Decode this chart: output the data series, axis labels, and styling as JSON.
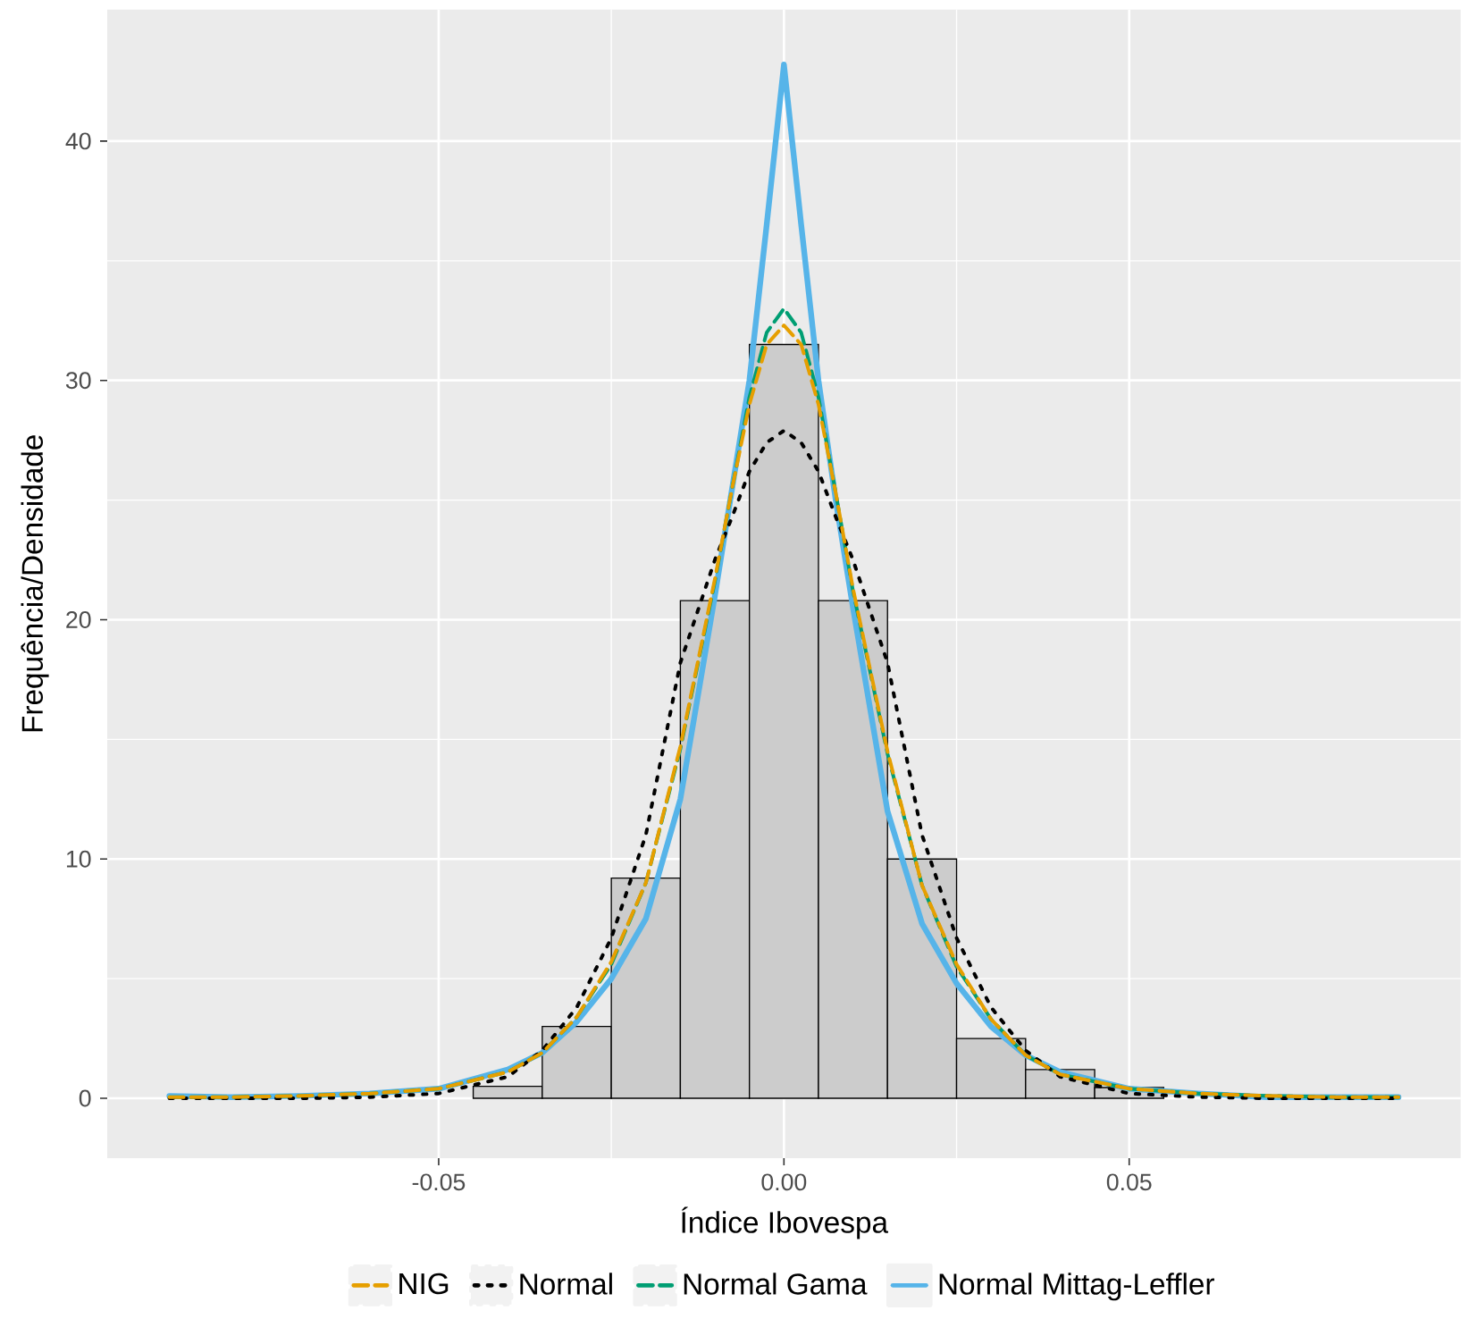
{
  "chart_data": {
    "type": "histogram",
    "xlabel": "Índice Ibovespa",
    "ylabel": "Frequência/Densidade",
    "bins": [
      -0.045,
      -0.035,
      -0.025,
      -0.015,
      -0.005,
      0.005,
      0.015,
      0.025,
      0.035,
      0.045,
      0.055
    ],
    "values": [
      0.5,
      3.0,
      9.2,
      20.8,
      31.5,
      20.8,
      10.0,
      2.5,
      1.2,
      0.45
    ],
    "color": "#cccccc",
    "series": [
      {
        "name": "NIG",
        "type": "line",
        "color": "#e69f00",
        "line_style": "dashed",
        "x": [
          -0.089,
          -0.08,
          -0.07,
          -0.06,
          -0.05,
          -0.04,
          -0.035,
          -0.03,
          -0.025,
          -0.02,
          -0.015,
          -0.01,
          -0.0075,
          -0.005,
          -0.0025,
          0,
          0.0025,
          0.005,
          0.0075,
          0.01,
          0.015,
          0.02,
          0.025,
          0.03,
          0.035,
          0.04,
          0.05,
          0.06,
          0.07,
          0.08,
          0.089
        ],
        "values": [
          0.05,
          0.05,
          0.1,
          0.2,
          0.4,
          1.1,
          1.9,
          3.4,
          5.7,
          9.0,
          14.7,
          21.7,
          25.5,
          29,
          31.5,
          32.3,
          31.5,
          29,
          25.3,
          21.3,
          14.5,
          8.9,
          5.6,
          3.3,
          1.8,
          1.0,
          0.4,
          0.2,
          0.1,
          0.05,
          0.05
        ]
      },
      {
        "name": "Normal",
        "type": "line",
        "color": "#000000",
        "line_style": "dotted",
        "x": [
          -0.089,
          -0.08,
          -0.07,
          -0.06,
          -0.05,
          -0.04,
          -0.035,
          -0.03,
          -0.025,
          -0.02,
          -0.015,
          -0.01,
          -0.0075,
          -0.005,
          -0.0025,
          0,
          0.0025,
          0.005,
          0.0075,
          0.01,
          0.015,
          0.02,
          0.025,
          0.03,
          0.035,
          0.04,
          0.05,
          0.06,
          0.07,
          0.08,
          0.089
        ],
        "values": [
          0,
          0,
          0,
          0.05,
          0.2,
          0.9,
          2.0,
          3.8,
          6.7,
          11.0,
          18.2,
          22.5,
          24.3,
          26.2,
          27.4,
          27.9,
          27.4,
          26.2,
          24.3,
          22.5,
          18.2,
          11.0,
          6.7,
          3.8,
          2.0,
          0.9,
          0.2,
          0.05,
          0,
          0,
          0
        ]
      },
      {
        "name": "Normal Gama",
        "type": "line",
        "color": "#009e73",
        "line_style": "dashed",
        "x": [
          -0.089,
          -0.08,
          -0.07,
          -0.06,
          -0.05,
          -0.04,
          -0.035,
          -0.03,
          -0.025,
          -0.02,
          -0.015,
          -0.01,
          -0.0075,
          -0.005,
          -0.0025,
          0,
          0.0025,
          0.005,
          0.0075,
          0.01,
          0.015,
          0.02,
          0.025,
          0.03,
          0.035,
          0.04,
          0.05,
          0.06,
          0.07,
          0.08,
          0.089
        ],
        "values": [
          0.05,
          0.05,
          0.1,
          0.2,
          0.4,
          1.1,
          1.9,
          3.4,
          5.6,
          9.0,
          14.6,
          21.6,
          25.5,
          29.3,
          32.0,
          33.0,
          32.0,
          29.3,
          25.3,
          21.2,
          14.4,
          8.9,
          5.5,
          3.3,
          1.8,
          1.0,
          0.4,
          0.2,
          0.1,
          0.05,
          0.05
        ]
      },
      {
        "name": "Normal Mittag-Leffler",
        "type": "line",
        "color": "#56b4e9",
        "line_style": "solid",
        "x": [
          -0.089,
          -0.08,
          -0.07,
          -0.06,
          -0.05,
          -0.04,
          -0.035,
          -0.03,
          -0.025,
          -0.02,
          -0.015,
          -0.01,
          -0.0075,
          -0.005,
          -0.0025,
          0,
          0.0025,
          0.005,
          0.0075,
          0.01,
          0.015,
          0.02,
          0.025,
          0.03,
          0.035,
          0.04,
          0.05,
          0.06,
          0.07,
          0.08,
          0.089
        ],
        "values": [
          0.1,
          0.05,
          0.1,
          0.2,
          0.4,
          1.2,
          1.9,
          3.2,
          5.0,
          7.5,
          12.5,
          21,
          25.5,
          30,
          36.5,
          43.2,
          36.5,
          30,
          25,
          20.5,
          12,
          7.3,
          4.8,
          3.0,
          1.8,
          1.1,
          0.4,
          0.2,
          0.05,
          0.05,
          0.05
        ]
      }
    ],
    "xlim": [
      -0.098,
      0.098
    ],
    "ylim": [
      -2.5,
      45.5
    ],
    "xticks": [
      {
        "value": -0.05,
        "label": "-0.05"
      },
      {
        "value": 0,
        "label": "0.00"
      },
      {
        "value": 0.05,
        "label": "0.05"
      }
    ],
    "yticks": [
      0,
      10,
      20,
      30,
      40
    ],
    "grid": true,
    "legend": "bottom"
  }
}
